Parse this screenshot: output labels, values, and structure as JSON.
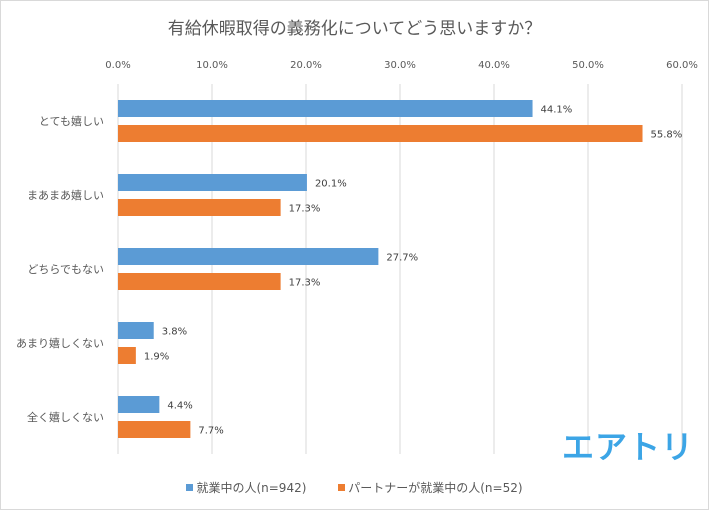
{
  "chart_data": {
    "type": "bar",
    "orientation": "horizontal",
    "title": "有給休暇取得の義務化についてどう思いますか？",
    "categories": [
      "とても嬉しい",
      "まあまあ嬉しい",
      "どちらでもない",
      "あまり嬉しくない",
      "全く嬉しくない"
    ],
    "series": [
      {
        "name": "就業中の人(n=942)",
        "color": "#5b9bd5",
        "values": [
          44.1,
          20.1,
          27.7,
          3.8,
          4.4
        ]
      },
      {
        "name": "パートナーが就業中の人(n=52)",
        "color": "#ed7d31",
        "values": [
          55.8,
          17.3,
          17.3,
          1.9,
          7.7
        ]
      }
    ],
    "xlim": [
      0,
      60
    ],
    "ticks": [
      "0.0%",
      "10.0%",
      "20.0%",
      "30.0%",
      "40.0%",
      "50.0%",
      "60.0%"
    ],
    "value_suffix": "%",
    "axis_position": "top",
    "grid": true,
    "legend_position": "bottom"
  },
  "logo_text": "エアトリ"
}
